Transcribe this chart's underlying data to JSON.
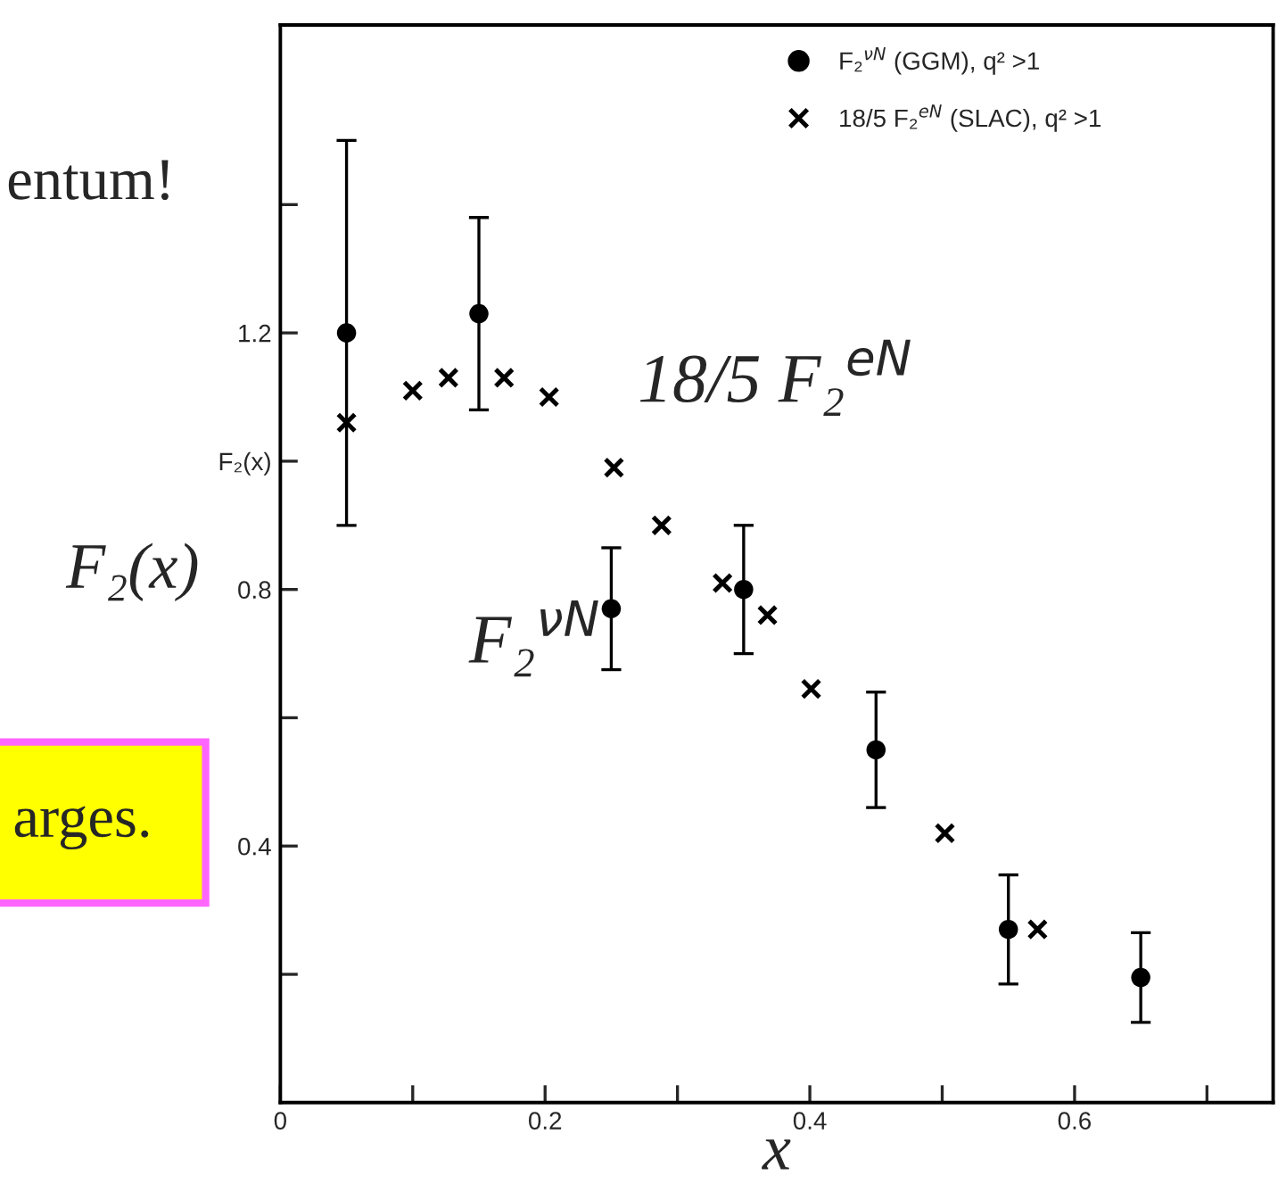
{
  "chart_data": {
    "type": "scatter",
    "xlabel": "x",
    "ylabel": "F₂(x)",
    "xlim": [
      0,
      0.75
    ],
    "xticks": [
      0,
      {
        "value": 0.1,
        "label": null
      },
      0.2,
      {
        "value": 0.3,
        "label": null
      },
      0.4,
      {
        "value": 0.5,
        "label": null
      },
      0.6,
      {
        "value": 0.7,
        "label": null
      }
    ],
    "ylim": [
      0,
      1.68
    ],
    "yticks": [
      {
        "value": 0.2,
        "label": null
      },
      0.4,
      {
        "value": 0.6,
        "label": null
      },
      0.8,
      {
        "value": 1.0,
        "label": "F₂(x)"
      },
      1.2,
      {
        "value": 1.4,
        "label": null
      }
    ],
    "legend": "top right",
    "grid": false,
    "series": [
      {
        "name": "F₂$^{νN}$ (GGM), q² >1",
        "color": "#000000",
        "marker": "circle",
        "x": [
          0.05,
          0.15,
          0.25,
          0.35,
          0.45,
          0.55,
          0.65
        ],
        "values": [
          1.2,
          1.23,
          0.77,
          0.8,
          0.55,
          0.27,
          0.195
        ],
        "errors": [
          0.3,
          0.15,
          0.095,
          0.1,
          0.09,
          0.085,
          0.07
        ]
      },
      {
        "name": "18/5 F₂$^{eN}$ (SLAC), q² >1",
        "color": "#000000",
        "marker": "cross",
        "x": [
          0.05,
          0.1,
          0.127,
          0.169,
          0.203,
          0.252,
          0.288,
          0.334,
          0.368,
          0.401,
          0.502,
          0.572
        ],
        "values": [
          1.06,
          1.11,
          1.13,
          1.13,
          1.1,
          0.99,
          0.9,
          0.81,
          0.76,
          0.645,
          0.42,
          0.27
        ]
      }
    ],
    "annotations": [
      "18/5 F₂$^{eN}$",
      "F₂$^{νN}$",
      "entum!",
      "arges."
    ]
  }
}
